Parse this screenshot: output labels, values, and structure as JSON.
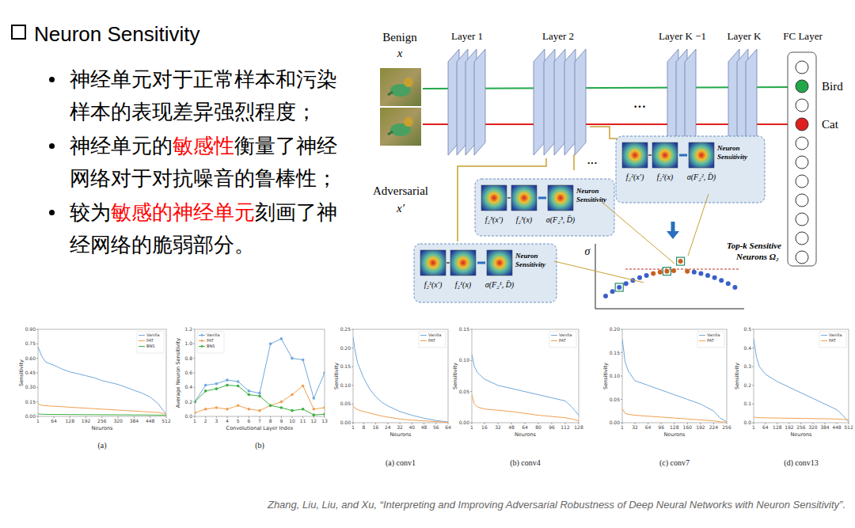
{
  "slide": {
    "title": "Neuron Sensitivity",
    "bullets": [
      [
        {
          "text": "神经单元对于正常样本和污染样本的表现差异强烈程度；"
        }
      ],
      [
        {
          "text": "神经单元的"
        },
        {
          "text": "敏感性",
          "color": "#ff0000"
        },
        {
          "text": "衡量了神经网络对于对抗噪音的鲁棒性；"
        }
      ],
      [
        {
          "text": "较为"
        },
        {
          "text": "敏感的神经单元",
          "color": "#ff0000"
        },
        {
          "text": "刻画了神经网络的脆弱部分。"
        }
      ]
    ],
    "citation": "Zhang, Liu, Liu, and Xu, “Interpreting and Improving Adversarial Robustness of Deep Neural Networks with Neuron Sensitivity”."
  },
  "diagram": {
    "inputs": [
      {
        "label": "Benign",
        "symbol": "x"
      },
      {
        "label": "Adversarial",
        "symbol": "x′"
      }
    ],
    "layers": [
      "Layer 1",
      "Layer 2",
      "Layer K −1",
      "Layer K",
      "FC Layer"
    ],
    "ellipsis": "···",
    "classes": [
      {
        "label": "Bird",
        "color": "#22a84a"
      },
      {
        "label": "Cat",
        "color": "#e0201e"
      }
    ],
    "boxes": [
      {
        "terms": [
          "f₂³(x′)",
          "f₂³(x)",
          "σ(F₂³, D̄)"
        ],
        "label": "Neuron Sensitivity"
      },
      {
        "terms": [
          "f₂²(x′)",
          "f₂²(x)",
          "σ(F₂², D̄)"
        ],
        "label": "Neuron Sensitivity"
      },
      {
        "terms": [
          "f₂¹(x′)",
          "f₂¹(x)",
          "σ(F₂¹, D̄)"
        ],
        "label": "Neuron Sensitivity"
      }
    ],
    "plot_axis": "σ",
    "top_k_label": "Top-k Sensitive Neurons Ω₂"
  },
  "chart_data": [
    {
      "type": "line",
      "title": "(a)",
      "x_label": "Neurons",
      "y_label": "Sensitivity",
      "x": [
        1,
        16,
        32,
        64,
        96,
        128,
        160,
        192,
        224,
        256,
        288,
        320,
        352,
        384,
        416,
        448,
        480,
        500,
        512
      ],
      "series": [
        {
          "name": "Vanilla",
          "color": "#6fa8dc",
          "values": [
            0.72,
            0.62,
            0.56,
            0.53,
            0.49,
            0.46,
            0.44,
            0.42,
            0.4,
            0.37,
            0.35,
            0.33,
            0.3,
            0.27,
            0.24,
            0.2,
            0.13,
            0.06,
            0.02
          ]
        },
        {
          "name": "PAT",
          "color": "#f0a050",
          "values": [
            0.13,
            0.115,
            0.11,
            0.105,
            0.1,
            0.095,
            0.09,
            0.085,
            0.08,
            0.075,
            0.07,
            0.065,
            0.06,
            0.055,
            0.05,
            0.045,
            0.04,
            0.03,
            0.02
          ]
        },
        {
          "name": "BNS",
          "color": "#3cb043",
          "values": [
            0.025,
            0.022,
            0.021,
            0.02,
            0.02,
            0.019,
            0.019,
            0.018,
            0.018,
            0.017,
            0.017,
            0.016,
            0.016,
            0.015,
            0.015,
            0.014,
            0.013,
            0.012,
            0.01
          ]
        }
      ],
      "xlim": [
        1,
        512
      ],
      "xticks": [
        1,
        64,
        128,
        192,
        256,
        320,
        384,
        448,
        512
      ],
      "ylim": [
        0,
        0.9
      ],
      "yticks": [
        {
          "value": 0,
          "label": "0.00"
        },
        {
          "value": 0.15,
          "label": "0.15"
        },
        {
          "value": 0.3,
          "label": "0.30"
        },
        {
          "value": 0.45,
          "label": "0.45"
        },
        {
          "value": 0.6,
          "label": "0.60"
        },
        {
          "value": 0.75,
          "label": "0.75"
        },
        {
          "value": 0.9,
          "label": "0.90"
        }
      ],
      "grid": false,
      "legend": "upper right"
    },
    {
      "type": "line",
      "title": "(b)",
      "x_label": "Convolutional Layer Index",
      "y_label": "Average Neuron Sensitivity",
      "x": [
        1,
        2,
        3,
        4,
        5,
        6,
        7,
        8,
        9,
        10,
        11,
        12,
        13
      ],
      "series": [
        {
          "name": "Vanilla",
          "color": "#6fa8dc",
          "marker": "circle",
          "values": [
            0.2,
            0.43,
            0.45,
            0.5,
            0.48,
            0.35,
            0.32,
            1.0,
            1.07,
            0.8,
            0.78,
            0.25,
            0.6
          ]
        },
        {
          "name": "PAT",
          "color": "#f0a050",
          "marker": "circle",
          "values": [
            0.05,
            0.1,
            0.12,
            0.1,
            0.15,
            0.1,
            0.08,
            0.15,
            0.2,
            0.3,
            0.42,
            0.1,
            0.12
          ]
        },
        {
          "name": "BNS",
          "color": "#3cb043",
          "marker": "circle",
          "values": [
            0.2,
            0.35,
            0.38,
            0.43,
            0.42,
            0.3,
            0.28,
            0.15,
            0.12,
            0.08,
            0.1,
            0.02,
            0.03
          ]
        }
      ],
      "xlim": [
        1,
        13
      ],
      "xticks": [
        1,
        2,
        3,
        4,
        5,
        6,
        7,
        8,
        9,
        10,
        11,
        12,
        13
      ],
      "ylim": [
        0,
        1.2
      ],
      "yticks": [
        {
          "value": 0,
          "label": "0.0"
        },
        {
          "value": 0.2,
          "label": "0.2"
        },
        {
          "value": 0.4,
          "label": "0.4"
        },
        {
          "value": 0.6,
          "label": "0.6"
        },
        {
          "value": 0.8,
          "label": "0.8"
        },
        {
          "value": 1,
          "label": "1.0"
        },
        {
          "value": 1.2,
          "label": "1.2"
        }
      ],
      "grid": false,
      "legend": "upper left"
    },
    {
      "type": "line",
      "title": "(a) conv1",
      "x_label": "Neurons",
      "y_label": "Sensitivity",
      "x": [
        1,
        2,
        4,
        6,
        8,
        12,
        16,
        20,
        24,
        32,
        40,
        48,
        56,
        64
      ],
      "series": [
        {
          "name": "Vanilla",
          "color": "#6fa8dc",
          "values": [
            0.23,
            0.2,
            0.16,
            0.14,
            0.12,
            0.09,
            0.07,
            0.055,
            0.045,
            0.03,
            0.02,
            0.012,
            0.006,
            0.002
          ]
        },
        {
          "name": "PAT",
          "color": "#f0a050",
          "values": [
            0.045,
            0.04,
            0.035,
            0.032,
            0.03,
            0.026,
            0.022,
            0.018,
            0.015,
            0.01,
            0.007,
            0.005,
            0.003,
            0.001
          ]
        }
      ],
      "xlim": [
        1,
        64
      ],
      "xticks": [
        1,
        8,
        16,
        24,
        32,
        40,
        48,
        56,
        64
      ],
      "ylim": [
        0,
        0.25
      ],
      "yticks": [
        {
          "value": 0,
          "label": "0.00"
        },
        {
          "value": 0.05,
          "label": "0.05"
        },
        {
          "value": 0.1,
          "label": "0.10"
        },
        {
          "value": 0.15,
          "label": "0.15"
        },
        {
          "value": 0.2,
          "label": "0.20"
        },
        {
          "value": 0.25,
          "label": "0.25"
        }
      ],
      "grid": false,
      "legend": "upper right"
    },
    {
      "type": "line",
      "title": "(b) conv4",
      "x_label": "Neurons",
      "y_label": "Sensitivity",
      "x": [
        1,
        4,
        8,
        16,
        32,
        48,
        64,
        80,
        96,
        112,
        120,
        128
      ],
      "series": [
        {
          "name": "Vanilla",
          "color": "#6fa8dc",
          "values": [
            0.11,
            0.09,
            0.08,
            0.07,
            0.06,
            0.055,
            0.05,
            0.045,
            0.04,
            0.035,
            0.025,
            0.012
          ]
        },
        {
          "name": "PAT",
          "color": "#f0a050",
          "values": [
            0.045,
            0.03,
            0.025,
            0.022,
            0.02,
            0.018,
            0.015,
            0.012,
            0.01,
            0.008,
            0.006,
            0.003
          ]
        }
      ],
      "xlim": [
        1,
        128
      ],
      "xticks": [
        1,
        16,
        32,
        48,
        64,
        80,
        96,
        112,
        128
      ],
      "ylim": [
        0,
        0.15
      ],
      "yticks": [
        {
          "value": 0,
          "label": "0.00"
        },
        {
          "value": 0.05,
          "label": "0.05"
        },
        {
          "value": 0.1,
          "label": "0.10"
        },
        {
          "value": 0.15,
          "label": "0.15"
        }
      ],
      "grid": false,
      "legend": "upper right"
    },
    {
      "type": "line",
      "title": "(c) conv7",
      "x_label": "Neurons",
      "y_label": "Sensitivity",
      "x": [
        1,
        8,
        16,
        32,
        64,
        96,
        128,
        160,
        192,
        224,
        240,
        256
      ],
      "series": [
        {
          "name": "Vanilla",
          "color": "#6fa8dc",
          "values": [
            0.18,
            0.13,
            0.11,
            0.09,
            0.08,
            0.07,
            0.06,
            0.05,
            0.04,
            0.025,
            0.01,
            0.002
          ]
        },
        {
          "name": "PAT",
          "color": "#f0a050",
          "values": [
            0.03,
            0.02,
            0.018,
            0.016,
            0.014,
            0.012,
            0.01,
            0.008,
            0.006,
            0.004,
            0.002,
            0.001
          ]
        }
      ],
      "xlim": [
        1,
        256
      ],
      "xticks": [
        1,
        32,
        64,
        96,
        128,
        160,
        192,
        224,
        256
      ],
      "ylim": [
        0,
        0.2
      ],
      "yticks": [
        {
          "value": 0,
          "label": "0.00"
        },
        {
          "value": 0.05,
          "label": "0.05"
        },
        {
          "value": 0.1,
          "label": "0.10"
        },
        {
          "value": 0.15,
          "label": "0.15"
        },
        {
          "value": 0.2,
          "label": "0.20"
        }
      ],
      "grid": false,
      "legend": "upper right"
    },
    {
      "type": "line",
      "title": "(d) conv13",
      "x_label": "Neurons",
      "y_label": "Sensitivity",
      "x": [
        1,
        16,
        32,
        64,
        128,
        192,
        256,
        320,
        384,
        448,
        480,
        512
      ],
      "series": [
        {
          "name": "Vanilla",
          "color": "#6fa8dc",
          "values": [
            0.45,
            0.35,
            0.3,
            0.26,
            0.22,
            0.19,
            0.16,
            0.13,
            0.1,
            0.07,
            0.04,
            0.005
          ]
        },
        {
          "name": "PAT",
          "color": "#f0a050",
          "values": [
            0.03,
            0.028,
            0.027,
            0.026,
            0.025,
            0.024,
            0.023,
            0.022,
            0.021,
            0.02,
            0.018,
            0.015
          ]
        }
      ],
      "xlim": [
        1,
        512
      ],
      "xticks": [
        1,
        64,
        128,
        192,
        256,
        320,
        384,
        448,
        512
      ],
      "ylim": [
        0,
        0.5
      ],
      "yticks": [
        {
          "value": 0,
          "label": "0.0"
        },
        {
          "value": 0.1,
          "label": "0.1"
        },
        {
          "value": 0.2,
          "label": "0.2"
        },
        {
          "value": 0.3,
          "label": "0.3"
        },
        {
          "value": 0.4,
          "label": "0.4"
        },
        {
          "value": 0.5,
          "label": "0.5"
        }
      ],
      "grid": false,
      "legend": "upper right"
    }
  ]
}
